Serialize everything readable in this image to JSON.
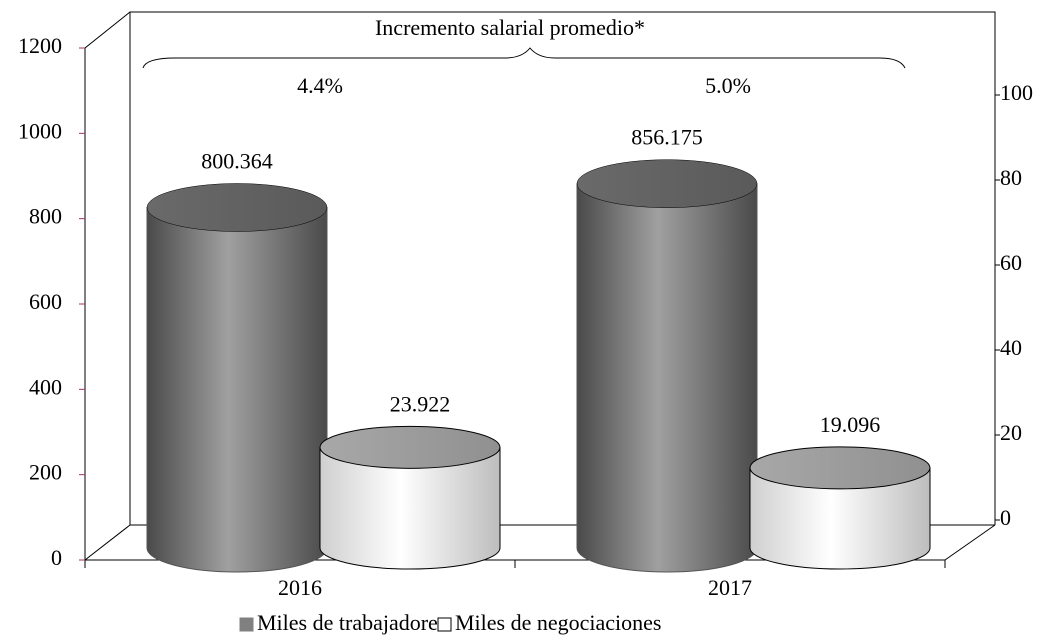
{
  "chart_data": {
    "type": "bar",
    "annotation_title": "Incremento salarial promedio*",
    "annotations": [
      "4.4%",
      "5.0%"
    ],
    "categories": [
      "2016",
      "2017"
    ],
    "series": [
      {
        "name": "Miles de trabajadores",
        "color": "#808080",
        "values": [
          800.364,
          856.175
        ]
      },
      {
        "name": "Miles de negociaciones",
        "color": "#ffffff",
        "values": [
          23.922,
          19.096
        ],
        "axis": "y2"
      }
    ],
    "ylim": [
      0,
      1200
    ],
    "yticks": [
      0,
      200,
      400,
      600,
      800,
      1000,
      1200
    ],
    "y2lim": [
      0,
      100
    ],
    "y2ticks": [
      0,
      20,
      40,
      60,
      80,
      100
    ],
    "grid": false
  }
}
